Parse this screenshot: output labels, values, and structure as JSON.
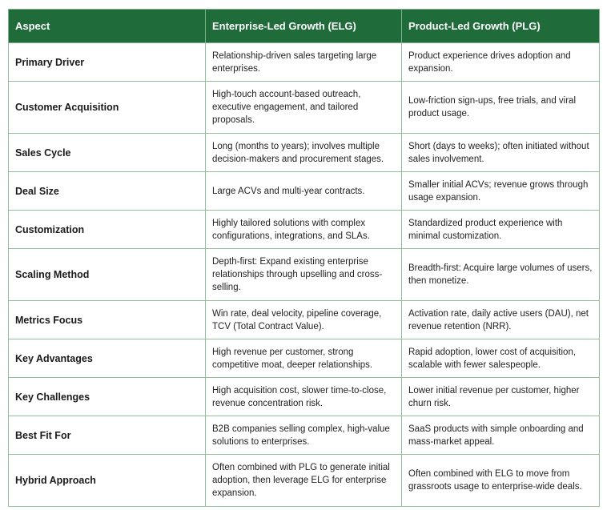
{
  "headers": [
    "Aspect",
    "Enterprise-Led Growth (ELG)",
    "Product-Led Growth (PLG)"
  ],
  "rows": [
    {
      "aspect": "Primary Driver",
      "elg": "Relationship-driven sales targeting large enterprises.",
      "plg": "Product experience drives adoption and expansion."
    },
    {
      "aspect": "Customer Acquisition",
      "elg": "High-touch account-based outreach, executive engagement, and tailored proposals.",
      "plg": "Low-friction sign-ups, free trials, and viral product usage."
    },
    {
      "aspect": "Sales Cycle",
      "elg": "Long (months to years); involves multiple decision-makers and procurement stages.",
      "plg": "Short (days to weeks); often initiated without sales involvement."
    },
    {
      "aspect": "Deal Size",
      "elg": "Large ACVs and multi-year contracts.",
      "plg": "Smaller initial ACVs; revenue grows through usage expansion."
    },
    {
      "aspect": "Customization",
      "elg": "Highly tailored solutions with complex configurations, integrations, and SLAs.",
      "plg": "Standardized product experience with minimal customization."
    },
    {
      "aspect": "Scaling Method",
      "elg": "Depth-first: Expand existing enterprise relationships through upselling and cross-selling.",
      "plg": "Breadth-first: Acquire large volumes of users, then monetize."
    },
    {
      "aspect": "Metrics Focus",
      "elg": "Win rate, deal velocity, pipeline coverage, TCV (Total Contract Value).",
      "plg": "Activation rate, daily active users (DAU), net revenue retention (NRR)."
    },
    {
      "aspect": "Key Advantages",
      "elg": "High revenue per customer, strong competitive moat, deeper relationships.",
      "plg": "Rapid adoption, lower cost of acquisition, scalable with fewer salespeople."
    },
    {
      "aspect": "Key Challenges",
      "elg": "High acquisition cost, slower time-to-close, revenue concentration risk.",
      "plg": "Lower initial revenue per customer, higher churn risk."
    },
    {
      "aspect": "Best Fit For",
      "elg": "B2B companies selling complex, high-value solutions to enterprises.",
      "plg": "SaaS products with simple onboarding and mass-market appeal."
    },
    {
      "aspect": "Hybrid Approach",
      "elg": "Often combined with PLG to generate initial adoption, then leverage ELG for enterprise expansion.",
      "plg": "Often combined with ELG to move from grassroots usage to enterprise-wide deals."
    }
  ],
  "colors": {
    "header_bg": "#1f6b3a",
    "header_text": "#ffffff",
    "border": "#8fbf9c"
  }
}
